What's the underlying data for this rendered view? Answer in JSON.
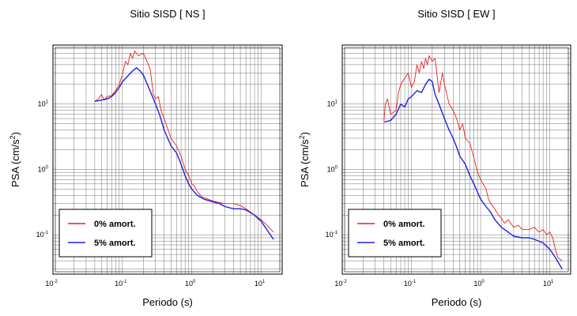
{
  "colors": {
    "series_0": "#e8211f",
    "series_5": "#1e22d8",
    "grid": "#000000"
  },
  "chart_data": [
    {
      "type": "line",
      "title": "Sitio SISD [ NS ]",
      "xlabel": "Periodo (s)",
      "ylabel": "PSA (cm/s",
      "ylabel_sup": "2",
      "ylabel_end": ")",
      "xscale": "log",
      "yscale": "log",
      "xlim": [
        0.01,
        20
      ],
      "ylim": [
        0.025,
        80
      ],
      "grid": true,
      "legend_position": "bottom-left",
      "x_ticks": [
        {
          "base": "10",
          "exp": "-2"
        },
        {
          "base": "10",
          "exp": "-1"
        },
        {
          "base": "10",
          "exp": "0"
        },
        {
          "base": "10",
          "exp": "1"
        }
      ],
      "y_ticks": [
        {
          "base": "10",
          "exp": "-1"
        },
        {
          "base": "10",
          "exp": "0"
        },
        {
          "base": "10",
          "exp": "1"
        }
      ],
      "series": [
        {
          "name": "0% amort.",
          "color": "#e8211f",
          "points": [
            [
              0.04,
              11
            ],
            [
              0.045,
              12
            ],
            [
              0.05,
              14
            ],
            [
              0.055,
              11.5
            ],
            [
              0.06,
              13
            ],
            [
              0.07,
              13.5
            ],
            [
              0.08,
              16
            ],
            [
              0.09,
              20
            ],
            [
              0.1,
              28
            ],
            [
              0.11,
              45
            ],
            [
              0.12,
              40
            ],
            [
              0.13,
              60
            ],
            [
              0.14,
              50
            ],
            [
              0.15,
              65
            ],
            [
              0.17,
              55
            ],
            [
              0.2,
              60
            ],
            [
              0.22,
              48
            ],
            [
              0.25,
              35
            ],
            [
              0.28,
              14
            ],
            [
              0.3,
              12
            ],
            [
              0.33,
              13
            ],
            [
              0.36,
              8
            ],
            [
              0.4,
              6
            ],
            [
              0.45,
              4.2
            ],
            [
              0.5,
              3
            ],
            [
              0.55,
              2.6
            ],
            [
              0.6,
              2.3
            ],
            [
              0.7,
              1.6
            ],
            [
              0.8,
              1.0
            ],
            [
              0.9,
              0.8
            ],
            [
              1.0,
              0.6
            ],
            [
              1.1,
              0.55
            ],
            [
              1.2,
              0.45
            ],
            [
              1.4,
              0.38
            ],
            [
              1.6,
              0.36
            ],
            [
              2.0,
              0.33
            ],
            [
              2.5,
              0.31
            ],
            [
              3.0,
              0.3
            ],
            [
              4.0,
              0.3
            ],
            [
              5.0,
              0.28
            ],
            [
              6.0,
              0.25
            ],
            [
              8.0,
              0.2
            ],
            [
              10.0,
              0.17
            ],
            [
              12.0,
              0.14
            ],
            [
              15.0,
              0.11
            ]
          ]
        },
        {
          "name": "5% amort.",
          "color": "#1e22d8",
          "points": [
            [
              0.04,
              11
            ],
            [
              0.05,
              11.5
            ],
            [
              0.06,
              12
            ],
            [
              0.07,
              13
            ],
            [
              0.08,
              15
            ],
            [
              0.09,
              18
            ],
            [
              0.1,
              22
            ],
            [
              0.12,
              27
            ],
            [
              0.14,
              32
            ],
            [
              0.16,
              36
            ],
            [
              0.18,
              32
            ],
            [
              0.2,
              28
            ],
            [
              0.22,
              22
            ],
            [
              0.25,
              16
            ],
            [
              0.3,
              10
            ],
            [
              0.35,
              6.5
            ],
            [
              0.4,
              4
            ],
            [
              0.45,
              3
            ],
            [
              0.5,
              2.3
            ],
            [
              0.6,
              1.8
            ],
            [
              0.7,
              1.2
            ],
            [
              0.8,
              0.8
            ],
            [
              0.9,
              0.6
            ],
            [
              1.0,
              0.5
            ],
            [
              1.2,
              0.4
            ],
            [
              1.5,
              0.35
            ],
            [
              2.0,
              0.32
            ],
            [
              2.5,
              0.3
            ],
            [
              3.0,
              0.27
            ],
            [
              4.0,
              0.25
            ],
            [
              5.0,
              0.25
            ],
            [
              6.0,
              0.24
            ],
            [
              8.0,
              0.2
            ],
            [
              10.0,
              0.16
            ],
            [
              12.0,
              0.12
            ],
            [
              15.0,
              0.085
            ]
          ]
        }
      ]
    },
    {
      "type": "line",
      "title": "Sitio SISD [ EW ]",
      "xlabel": "Periodo (s)",
      "ylabel": "PSA (cm/s",
      "ylabel_sup": "2",
      "ylabel_end": ")",
      "xscale": "log",
      "yscale": "log",
      "xlim": [
        0.01,
        20
      ],
      "ylim": [
        0.025,
        80
      ],
      "grid": true,
      "legend_position": "bottom-left",
      "x_ticks": [
        {
          "base": "10",
          "exp": "-2"
        },
        {
          "base": "10",
          "exp": "-1"
        },
        {
          "base": "10",
          "exp": "0"
        },
        {
          "base": "10",
          "exp": "1"
        }
      ],
      "y_ticks": [
        {
          "base": "10",
          "exp": "-1"
        },
        {
          "base": "10",
          "exp": "0"
        },
        {
          "base": "10",
          "exp": "1"
        }
      ],
      "series": [
        {
          "name": "0% amort.",
          "color": "#e8211f",
          "points": [
            [
              0.04,
              5.5
            ],
            [
              0.042,
              10
            ],
            [
              0.045,
              12
            ],
            [
              0.05,
              7
            ],
            [
              0.055,
              7.5
            ],
            [
              0.06,
              8
            ],
            [
              0.065,
              15
            ],
            [
              0.07,
              20
            ],
            [
              0.08,
              25
            ],
            [
              0.09,
              30
            ],
            [
              0.1,
              18
            ],
            [
              0.11,
              22
            ],
            [
              0.12,
              40
            ],
            [
              0.13,
              30
            ],
            [
              0.14,
              45
            ],
            [
              0.15,
              35
            ],
            [
              0.16,
              50
            ],
            [
              0.17,
              40
            ],
            [
              0.18,
              55
            ],
            [
              0.2,
              45
            ],
            [
              0.22,
              50
            ],
            [
              0.25,
              15
            ],
            [
              0.28,
              30
            ],
            [
              0.3,
              20
            ],
            [
              0.35,
              10
            ],
            [
              0.4,
              8
            ],
            [
              0.45,
              6
            ],
            [
              0.5,
              4
            ],
            [
              0.55,
              5
            ],
            [
              0.6,
              3
            ],
            [
              0.7,
              2.5
            ],
            [
              0.8,
              1.5
            ],
            [
              0.9,
              0.9
            ],
            [
              1.0,
              0.7
            ],
            [
              1.2,
              0.5
            ],
            [
              1.3,
              0.35
            ],
            [
              1.4,
              0.3
            ],
            [
              1.6,
              0.25
            ],
            [
              1.8,
              0.2
            ],
            [
              2.0,
              0.18
            ],
            [
              2.2,
              0.15
            ],
            [
              2.5,
              0.17
            ],
            [
              3.0,
              0.13
            ],
            [
              3.5,
              0.14
            ],
            [
              4.0,
              0.12
            ],
            [
              5.0,
              0.12
            ],
            [
              6.0,
              0.13
            ],
            [
              7.0,
              0.11
            ],
            [
              8.0,
              0.12
            ],
            [
              9.0,
              0.1
            ],
            [
              10.0,
              0.11
            ],
            [
              11.0,
              0.09
            ],
            [
              12.0,
              0.06
            ],
            [
              13.0,
              0.045
            ],
            [
              15.0,
              0.04
            ]
          ]
        },
        {
          "name": "5% amort.",
          "color": "#1e22d8",
          "points": [
            [
              0.04,
              5.3
            ],
            [
              0.05,
              5.6
            ],
            [
              0.06,
              7
            ],
            [
              0.07,
              10
            ],
            [
              0.08,
              9
            ],
            [
              0.09,
              12
            ],
            [
              0.1,
              13
            ],
            [
              0.12,
              16
            ],
            [
              0.14,
              15
            ],
            [
              0.16,
              20
            ],
            [
              0.18,
              24
            ],
            [
              0.2,
              22
            ],
            [
              0.22,
              14
            ],
            [
              0.25,
              10
            ],
            [
              0.3,
              6
            ],
            [
              0.35,
              4
            ],
            [
              0.4,
              3
            ],
            [
              0.45,
              2.2
            ],
            [
              0.5,
              1.6
            ],
            [
              0.6,
              1.2
            ],
            [
              0.7,
              0.8
            ],
            [
              0.8,
              0.6
            ],
            [
              0.9,
              0.45
            ],
            [
              1.0,
              0.35
            ],
            [
              1.2,
              0.27
            ],
            [
              1.4,
              0.22
            ],
            [
              1.6,
              0.17
            ],
            [
              2.0,
              0.13
            ],
            [
              2.5,
              0.11
            ],
            [
              3.0,
              0.095
            ],
            [
              4.0,
              0.09
            ],
            [
              5.0,
              0.09
            ],
            [
              6.0,
              0.085
            ],
            [
              8.0,
              0.075
            ],
            [
              10.0,
              0.06
            ],
            [
              12.0,
              0.045
            ],
            [
              15.0,
              0.03
            ]
          ]
        }
      ]
    }
  ]
}
